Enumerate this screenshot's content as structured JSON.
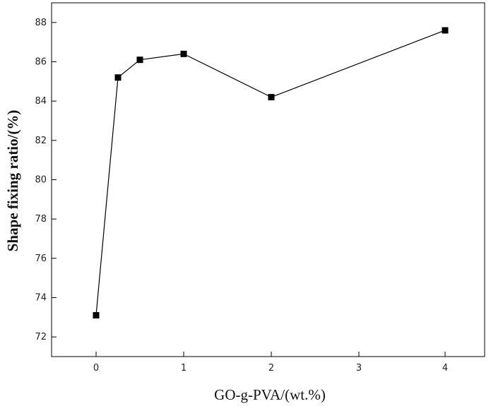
{
  "chart_data": {
    "type": "line",
    "title": "",
    "xlabel": "GO-g-PVA/(wt.%)",
    "ylabel": "Shape fixing ratio/(%)",
    "x_tick_labels": [
      "0",
      "1",
      "2",
      "3",
      "4"
    ],
    "y_tick_labels": [
      "72",
      "74",
      "76",
      "78",
      "80",
      "82",
      "84",
      "86",
      "88"
    ],
    "x_ticks": [
      0,
      1,
      2,
      3,
      4
    ],
    "y_ticks": [
      72,
      74,
      76,
      78,
      80,
      82,
      84,
      86,
      88
    ],
    "ylim": [
      71,
      89
    ],
    "marker": "square",
    "legend": "none",
    "grid": false,
    "colors": {
      "line": "#000000",
      "marker": "#000000",
      "axis": "#000000"
    },
    "series": [
      {
        "points": [
          {
            "x_label": "0",
            "y": 73.1
          },
          {
            "x_label": "0.25",
            "y": 85.2
          },
          {
            "x_label": "0.5",
            "y": 86.1
          },
          {
            "x_label": "1",
            "y": 86.4
          },
          {
            "x_label": "2",
            "y": 84.2
          },
          {
            "x_label": "4",
            "y": 87.6
          }
        ]
      }
    ]
  }
}
